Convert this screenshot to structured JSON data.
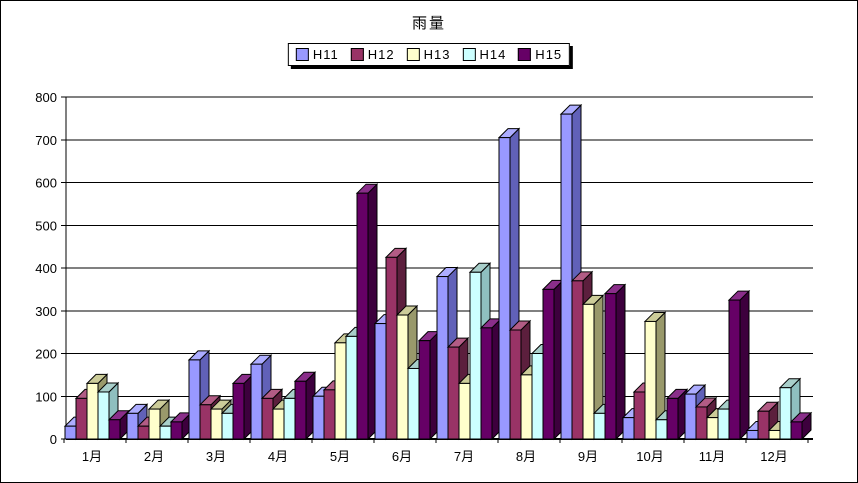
{
  "title": "雨量",
  "legend": {
    "position": "top",
    "entries": [
      {
        "label": "H11",
        "color": "#9999FF"
      },
      {
        "label": "H12",
        "color": "#993366"
      },
      {
        "label": "H13",
        "color": "#FFFFCC"
      },
      {
        "label": "H14",
        "color": "#CCFFFF"
      },
      {
        "label": "H15",
        "color": "#660066"
      }
    ]
  },
  "chart_data": {
    "type": "bar",
    "style": "3d-column",
    "title": "雨量",
    "xlabel": "",
    "ylabel": "",
    "ylim": [
      0,
      800
    ],
    "yticks": [
      0,
      100,
      200,
      300,
      400,
      500,
      600,
      700,
      800
    ],
    "grid": true,
    "legend_position": "top",
    "categories": [
      "1月",
      "2月",
      "3月",
      "4月",
      "5月",
      "6月",
      "7月",
      "8月",
      "9月",
      "10月",
      "11月",
      "12月"
    ],
    "series": [
      {
        "name": "H11",
        "color": "#9999FF",
        "top_color": "#ADADFF",
        "side_color": "#6161B8",
        "values": [
          30,
          60,
          185,
          175,
          100,
          270,
          380,
          705,
          760,
          50,
          105,
          20
        ]
      },
      {
        "name": "H12",
        "color": "#993366",
        "top_color": "#B25C85",
        "side_color": "#5C1F3D",
        "values": [
          95,
          30,
          80,
          95,
          115,
          425,
          215,
          255,
          370,
          110,
          75,
          65
        ]
      },
      {
        "name": "H13",
        "color": "#FFFFCC",
        "top_color": "#CCCC99",
        "side_color": "#99996B",
        "values": [
          130,
          70,
          70,
          70,
          225,
          290,
          130,
          150,
          315,
          275,
          50,
          20
        ]
      },
      {
        "name": "H14",
        "color": "#CCFFFF",
        "top_color": "#A8CFCA",
        "side_color": "#8FBFBF",
        "values": [
          110,
          30,
          60,
          95,
          240,
          165,
          390,
          200,
          60,
          45,
          70,
          120
        ]
      },
      {
        "name": "H15",
        "color": "#660066",
        "top_color": "#8A2E8A",
        "side_color": "#3D003D",
        "values": [
          45,
          40,
          130,
          135,
          575,
          230,
          260,
          350,
          340,
          95,
          325,
          40
        ]
      }
    ],
    "axis_color": "#000000",
    "grid_color": "#000000",
    "background": "#FFFFFF"
  }
}
